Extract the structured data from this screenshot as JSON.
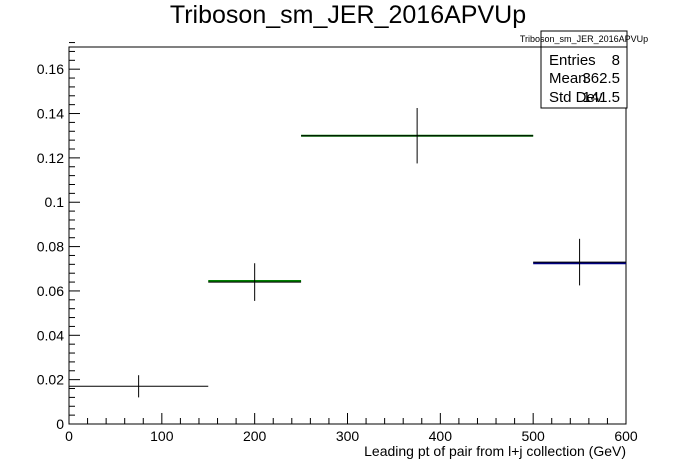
{
  "chart_data": {
    "type": "scatter",
    "title": "Triboson_sm_JER_2016APVUp",
    "xlabel": "Leading pt of pair from l+j collection (GeV)",
    "ylabel": "",
    "xlim": [
      0,
      600
    ],
    "ylim": [
      0,
      0.17
    ],
    "x_ticks": [
      0,
      100,
      200,
      300,
      400,
      500,
      600
    ],
    "y_ticks": [
      0,
      0.02,
      0.04,
      0.06,
      0.08,
      0.1,
      0.12,
      0.14,
      0.16
    ],
    "series": [
      {
        "color": "#000000",
        "points": [
          {
            "x": 75,
            "xlow": 0,
            "xhigh": 150,
            "y": 0.017,
            "err": 0.005
          },
          {
            "x": 200,
            "xlow": 150,
            "xhigh": 250,
            "y": 0.064,
            "err": 0.0085
          },
          {
            "x": 375,
            "xlow": 250,
            "xhigh": 500,
            "y": 0.13,
            "err": 0.0125
          },
          {
            "x": 550,
            "xlow": 500,
            "xhigh": 600,
            "y": 0.073,
            "err": 0.0105
          }
        ]
      }
    ],
    "overlay": {
      "color": "#008000",
      "segments": [
        {
          "xlow": 150,
          "xhigh": 250,
          "y": 0.0645
        },
        {
          "xlow": 250,
          "xhigh": 500,
          "y": 0.13
        }
      ]
    },
    "overlay_dark": {
      "color": "#000080",
      "segments": [
        {
          "xlow": 500,
          "xhigh": 600,
          "y": 0.0725
        }
      ]
    },
    "grid": false,
    "legend": "top-right"
  },
  "stats": {
    "title": "Triboson_sm_JER_2016APVUp",
    "rows": [
      {
        "label": "Entries",
        "value": "8"
      },
      {
        "label": "Mean",
        "value": "362.5"
      },
      {
        "label": "Std Dev",
        "value": "141.5"
      }
    ]
  }
}
